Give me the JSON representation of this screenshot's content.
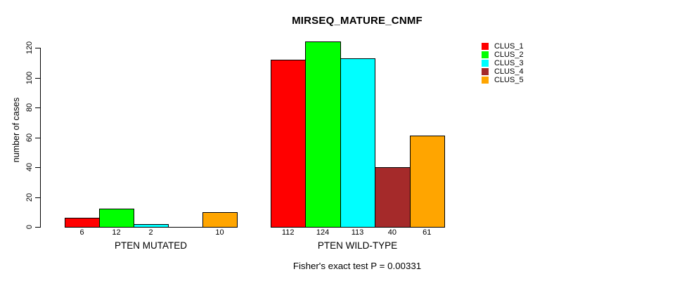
{
  "figure": {
    "title": "MIRSEQ_MATURE_CNMF",
    "y_axis_label": "number of cases",
    "footer": "Fisher's exact test P = 0.00331"
  },
  "chart_data": {
    "type": "bar",
    "title": "MIRSEQ_MATURE_CNMF",
    "xlabel": "",
    "ylabel": "number of cases",
    "categories": [
      "PTEN MUTATED",
      "PTEN WILD-TYPE"
    ],
    "series": [
      {
        "name": "CLUS_1",
        "color": "#FF0000",
        "values": [
          6,
          112
        ]
      },
      {
        "name": "CLUS_2",
        "color": "#00FF00",
        "values": [
          12,
          124
        ]
      },
      {
        "name": "CLUS_3",
        "color": "#00FFFF",
        "values": [
          2,
          113
        ]
      },
      {
        "name": "CLUS_4",
        "color": "#A52A2A",
        "values": [
          0,
          40
        ]
      },
      {
        "name": "CLUS_5",
        "color": "#FFA500",
        "values": [
          10,
          61
        ]
      }
    ],
    "bar_value_labels": [
      [
        "6",
        "12",
        "2",
        "",
        "10"
      ],
      [
        "112",
        "124",
        "113",
        "40",
        "61"
      ]
    ],
    "yticks": [
      0,
      20,
      40,
      60,
      80,
      100,
      120
    ],
    "ylim": [
      0,
      120
    ],
    "grid": false,
    "legend_position": "right-outside",
    "legend_entries": [
      "CLUS_1",
      "CLUS_2",
      "CLUS_3",
      "CLUS_4",
      "CLUS_5"
    ],
    "annotation": "Fisher's exact test P = 0.00331"
  }
}
